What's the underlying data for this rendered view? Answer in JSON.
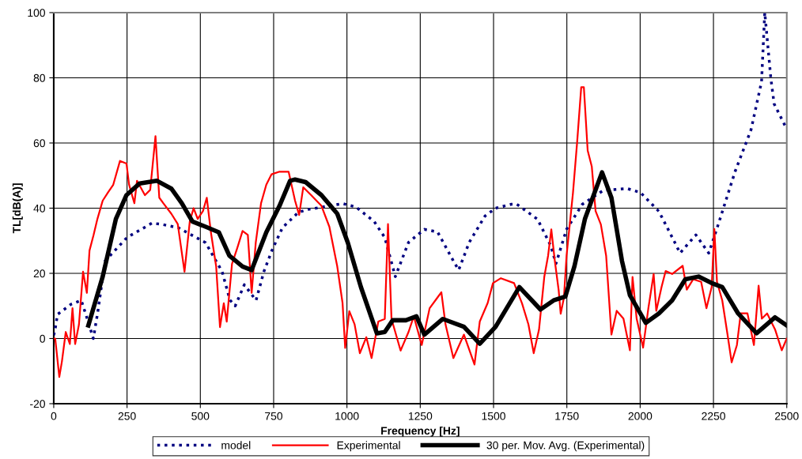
{
  "chart_data": {
    "type": "line",
    "xlabel": "Frequency [Hz]",
    "ylabel": "TL[dB(A)]",
    "xlim": [
      0,
      2500
    ],
    "ylim": [
      -20,
      100
    ],
    "xticks": [
      0,
      250,
      500,
      750,
      1000,
      1250,
      1500,
      1750,
      2000,
      2250,
      2500
    ],
    "yticks": [
      -20,
      0,
      20,
      40,
      60,
      80,
      100
    ],
    "grid": true,
    "legend": "bottom",
    "marker": "none",
    "series": [
      {
        "name": "model",
        "color": "#000080",
        "line_style": "dotted",
        "x": [
          0,
          5,
          13,
          59,
          94,
          118,
          135,
          150,
          175,
          250,
          335,
          370,
          425,
          518,
          574,
          601,
          619,
          650,
          690,
          717,
          744,
          780,
          834,
          868,
          985,
          1030,
          1093,
          1129,
          1165,
          1210,
          1264,
          1309,
          1363,
          1381,
          1417,
          1471,
          1507,
          1561,
          1578,
          1650,
          1695,
          1713,
          1749,
          1803,
          1875,
          1956,
          2001,
          2064,
          2118,
          2136,
          2190,
          2234,
          2261,
          2324,
          2378,
          2414,
          2425,
          2446,
          2457,
          2497
        ],
        "values": [
          1,
          3,
          7.4,
          10.5,
          11.7,
          5,
          0,
          8,
          23.8,
          31,
          35.4,
          35,
          34,
          29.4,
          20.6,
          11.8,
          10,
          16.5,
          11.7,
          20.6,
          27,
          34,
          38.7,
          39.6,
          41.4,
          40.4,
          35.9,
          31,
          19,
          29.5,
          33.5,
          32.7,
          23.8,
          21,
          29.5,
          37.6,
          40,
          41.2,
          41.3,
          36.6,
          28.5,
          23,
          33.5,
          41.2,
          45.5,
          46,
          44.8,
          39,
          29.5,
          26.2,
          31.8,
          26.2,
          33.5,
          51.3,
          64,
          78.8,
          100,
          79.6,
          72,
          64.8
        ]
      },
      {
        "name": "Experimental",
        "color": "#ff0000",
        "line_style": "solid",
        "x": [
          0,
          5,
          19,
          28,
          41,
          55,
          64,
          73,
          86,
          100,
          113,
          122,
          136,
          149,
          167,
          185,
          203,
          226,
          248,
          257,
          275,
          284,
          311,
          329,
          347,
          360,
          374,
          401,
          423,
          446,
          464,
          477,
          491,
          509,
          522,
          536,
          554,
          567,
          580,
          590,
          608,
          626,
          644,
          662,
          675,
          689,
          707,
          725,
          743,
          770,
          801,
          823,
          837,
          851,
          878,
          913,
          940,
          967,
          985,
          994,
          1008,
          1026,
          1044,
          1066,
          1084,
          1107,
          1129,
          1140,
          1152,
          1183,
          1210,
          1228,
          1255,
          1282,
          1309,
          1322,
          1336,
          1363,
          1399,
          1435,
          1453,
          1480,
          1498,
          1525,
          1570,
          1597,
          1619,
          1637,
          1655,
          1673,
          1686,
          1697,
          1709,
          1722,
          1729,
          1740,
          1749,
          1771,
          1785,
          1799,
          1808,
          1821,
          1835,
          1848,
          1866,
          1884,
          1902,
          1920,
          1943,
          1965,
          1974,
          1988,
          2010,
          2028,
          2046,
          2055,
          2073,
          2087,
          2109,
          2145,
          2159,
          2181,
          2208,
          2226,
          2244,
          2253,
          2262,
          2280,
          2298,
          2312,
          2330,
          2343,
          2366,
          2388,
          2404,
          2415,
          2433,
          2460,
          2483,
          2500
        ],
        "values": [
          0,
          0,
          -11.8,
          -7,
          2,
          -1.7,
          9.3,
          -1.7,
          4.3,
          20.5,
          14,
          27,
          31.8,
          36.7,
          42.3,
          44.8,
          47.2,
          54.5,
          53.7,
          47.2,
          41.5,
          48.4,
          44,
          45.6,
          62.1,
          43.2,
          41.5,
          38.3,
          35.1,
          20.5,
          35.9,
          40,
          36.7,
          39.1,
          43.2,
          32.6,
          22.1,
          3.5,
          10.8,
          5.2,
          22.9,
          27.8,
          33,
          31.8,
          14,
          29.4,
          41.5,
          47.2,
          50.4,
          51.2,
          51.2,
          42.3,
          37.9,
          46.4,
          44,
          40.7,
          34.3,
          22.1,
          10.9,
          -2.9,
          8.4,
          4.4,
          -4.5,
          0.4,
          -6,
          5.2,
          6,
          35.1,
          6,
          -3.7,
          2,
          6.8,
          -2,
          9.3,
          12.6,
          14.2,
          4.4,
          -6,
          1.2,
          -8,
          5.2,
          10.9,
          17,
          18.5,
          17,
          10.8,
          4.3,
          -4.5,
          2.7,
          18.9,
          25.4,
          33.5,
          23.8,
          14.9,
          7.6,
          12.5,
          25.4,
          44.8,
          60.2,
          77.1,
          77.1,
          57.7,
          52.8,
          39.1,
          35,
          25.4,
          1.2,
          8.5,
          6.1,
          -3.6,
          18.9,
          6.1,
          -2.8,
          9.3,
          19.8,
          8.5,
          15.8,
          20.7,
          19.8,
          22.3,
          15,
          18.2,
          17.4,
          9.3,
          15.8,
          33.6,
          17.4,
          11.7,
          1.2,
          -7.3,
          -2,
          7.7,
          7.7,
          -2,
          16.2,
          6.1,
          7.7,
          2.8,
          -3.6,
          0
        ]
      },
      {
        "name": "30 per. Mov. Avg. (Experimental)",
        "color": "#000000",
        "line_style": "solid",
        "x": [
          118,
          167,
          212,
          248,
          293,
          352,
          401,
          437,
          473,
          518,
          563,
          599,
          644,
          675,
          725,
          770,
          806,
          823,
          859,
          913,
          967,
          1003,
          1048,
          1102,
          1129,
          1156,
          1201,
          1237,
          1264,
          1327,
          1399,
          1453,
          1507,
          1588,
          1660,
          1705,
          1745,
          1776,
          1812,
          1870,
          1902,
          1938,
          1965,
          2019,
          2064,
          2109,
          2154,
          2199,
          2244,
          2280,
          2334,
          2397,
          2460,
          2500
        ],
        "values": [
          4,
          19,
          36.7,
          44,
          47.6,
          48.4,
          46,
          41.5,
          35.9,
          34.3,
          32.6,
          25.4,
          22.1,
          21,
          32.6,
          40.7,
          48.4,
          48.8,
          48,
          44,
          38.3,
          29.4,
          15.7,
          1.6,
          2,
          5.6,
          5.6,
          6.8,
          1.2,
          6,
          3.6,
          -1.6,
          3.6,
          15.8,
          8.9,
          11.7,
          12.9,
          22.2,
          36.8,
          51,
          43.2,
          23.8,
          13.3,
          4.8,
          7.7,
          11.7,
          18.2,
          19,
          17,
          15.8,
          7.7,
          1.6,
          6.5,
          4
        ]
      }
    ]
  }
}
